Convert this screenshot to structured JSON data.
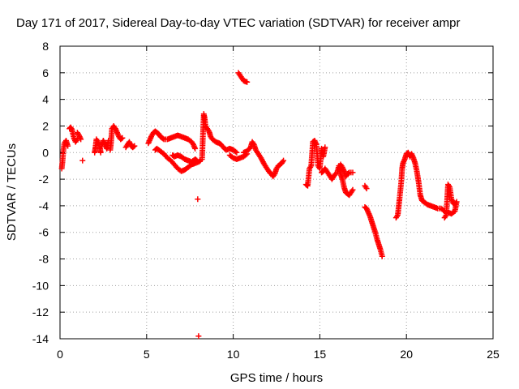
{
  "chart_data": {
    "type": "scatter",
    "title": "Day 171 of 2017, Sidereal Day-to-day VTEC variation (SDTVAR) for receiver ampr",
    "xlabel": "GPS time / hours",
    "ylabel": "SDTVAR / TECUs",
    "xlim": [
      0,
      25
    ],
    "ylim": [
      -14,
      8
    ],
    "xticks": [
      0,
      5,
      10,
      15,
      20,
      25
    ],
    "xtick_labels": [
      "0",
      "5",
      "10",
      "15",
      "20",
      "25"
    ],
    "yticks": [
      -14,
      -12,
      -10,
      -8,
      -6,
      -4,
      -2,
      0,
      2,
      4,
      6,
      8
    ],
    "ytick_labels": [
      "-14",
      "-12",
      "-10",
      "-8",
      "-6",
      "-4",
      "-2",
      "0",
      "2",
      "4",
      "6",
      "8"
    ],
    "grid": true,
    "marker": "+",
    "color": "#ff0000",
    "series": [
      {
        "name": "SDTVAR",
        "segments": [
          [
            [
              0.1,
              -1.2
            ],
            [
              0.15,
              -0.6
            ],
            [
              0.2,
              0.2
            ],
            [
              0.25,
              0.7
            ],
            [
              0.35,
              0.9
            ],
            [
              0.45,
              0.5
            ]
          ],
          [
            [
              0.55,
              1.8
            ],
            [
              0.62,
              1.9
            ],
            [
              0.7,
              1.7
            ],
            [
              0.8,
              1.1
            ],
            [
              0.9,
              0.8
            ],
            [
              1.0,
              1.0
            ]
          ],
          [
            [
              1.0,
              1.5
            ],
            [
              1.1,
              1.3
            ],
            [
              1.2,
              1.0
            ]
          ],
          [
            [
              1.3,
              -0.6
            ]
          ],
          [
            [
              2.0,
              0.0
            ],
            [
              2.05,
              0.4
            ],
            [
              2.1,
              1.0
            ],
            [
              2.2,
              0.8
            ],
            [
              2.3,
              0.4
            ],
            [
              2.35,
              0.0
            ]
          ],
          [
            [
              2.4,
              0.5
            ],
            [
              2.5,
              0.9
            ],
            [
              2.6,
              0.6
            ],
            [
              2.7,
              0.3
            ],
            [
              2.8,
              0.9
            ]
          ],
          [
            [
              2.9,
              0.2
            ],
            [
              2.95,
              0.8
            ],
            [
              3.0,
              1.8
            ],
            [
              3.1,
              2.0
            ],
            [
              3.2,
              1.8
            ],
            [
              3.3,
              1.5
            ],
            [
              3.4,
              1.2
            ],
            [
              3.5,
              1.0
            ],
            [
              3.6,
              1.1
            ]
          ],
          [
            [
              3.8,
              0.4
            ],
            [
              3.9,
              0.6
            ],
            [
              4.0,
              0.8
            ],
            [
              4.1,
              0.5
            ],
            [
              4.2,
              0.4
            ],
            [
              4.3,
              0.5
            ]
          ],
          [
            [
              5.1,
              0.7
            ],
            [
              5.2,
              1.0
            ],
            [
              5.3,
              1.3
            ],
            [
              5.4,
              1.5
            ],
            [
              5.5,
              1.6
            ],
            [
              5.6,
              1.5
            ],
            [
              5.7,
              1.4
            ],
            [
              5.8,
              1.2
            ],
            [
              5.9,
              1.1
            ],
            [
              6.0,
              1.0
            ],
            [
              6.2,
              1.0
            ],
            [
              6.4,
              1.1
            ],
            [
              6.6,
              1.2
            ],
            [
              6.8,
              1.3
            ],
            [
              7.0,
              1.2
            ],
            [
              7.2,
              1.1
            ],
            [
              7.4,
              1.0
            ],
            [
              7.6,
              0.8
            ],
            [
              7.7,
              0.6
            ],
            [
              7.8,
              0.3
            ]
          ],
          [
            [
              5.5,
              0.2
            ],
            [
              5.6,
              0.3
            ],
            [
              5.8,
              0.1
            ],
            [
              6.0,
              -0.1
            ],
            [
              6.2,
              -0.4
            ],
            [
              6.4,
              -0.6
            ],
            [
              6.6,
              -0.9
            ],
            [
              6.8,
              -1.2
            ],
            [
              7.0,
              -1.4
            ],
            [
              7.2,
              -1.3
            ],
            [
              7.4,
              -1.1
            ],
            [
              7.6,
              -0.9
            ],
            [
              7.8,
              -0.8
            ],
            [
              8.0,
              -0.7
            ],
            [
              8.1,
              -0.6
            ]
          ],
          [
            [
              6.5,
              -0.2
            ],
            [
              6.6,
              -0.3
            ],
            [
              6.8,
              -0.2
            ],
            [
              7.0,
              -0.3
            ],
            [
              7.2,
              -0.5
            ],
            [
              7.4,
              -0.6
            ],
            [
              7.6,
              -0.7
            ],
            [
              7.8,
              -0.5
            ],
            [
              7.9,
              -0.6
            ]
          ],
          [
            [
              7.95,
              -3.5
            ]
          ],
          [
            [
              8.0,
              -13.8
            ]
          ],
          [
            [
              8.2,
              -0.5
            ],
            [
              8.3,
              2.9
            ],
            [
              8.35,
              2.6
            ],
            [
              8.4,
              2.0
            ],
            [
              8.5,
              1.8
            ],
            [
              8.6,
              1.6
            ],
            [
              8.7,
              1.2
            ],
            [
              8.8,
              1.0
            ],
            [
              9.0,
              0.8
            ],
            [
              9.2,
              0.7
            ],
            [
              9.3,
              0.6
            ],
            [
              9.5,
              0.3
            ],
            [
              9.6,
              0.2
            ],
            [
              9.8,
              0.3
            ],
            [
              10.0,
              0.2
            ],
            [
              10.2,
              0.0
            ]
          ],
          [
            [
              9.8,
              -0.2
            ],
            [
              10.0,
              -0.4
            ],
            [
              10.2,
              -0.5
            ],
            [
              10.4,
              -0.4
            ],
            [
              10.6,
              -0.3
            ],
            [
              10.8,
              -0.1
            ]
          ],
          [
            [
              10.3,
              6.0
            ],
            [
              10.4,
              5.8
            ],
            [
              10.5,
              5.6
            ],
            [
              10.6,
              5.4
            ],
            [
              10.8,
              5.3
            ]
          ],
          [
            [
              10.6,
              0.0
            ],
            [
              10.8,
              0.1
            ],
            [
              11.0,
              0.4
            ],
            [
              11.1,
              0.8
            ],
            [
              11.2,
              0.6
            ],
            [
              11.3,
              0.2
            ],
            [
              11.5,
              -0.2
            ],
            [
              11.6,
              -0.4
            ],
            [
              11.8,
              -0.9
            ],
            [
              11.9,
              -1.1
            ],
            [
              12.0,
              -1.3
            ],
            [
              12.1,
              -1.5
            ],
            [
              12.2,
              -1.6
            ],
            [
              12.3,
              -1.8
            ],
            [
              12.4,
              -1.6
            ],
            [
              12.5,
              -1.2
            ],
            [
              12.6,
              -1.0
            ],
            [
              12.7,
              -0.9
            ],
            [
              12.8,
              -0.8
            ],
            [
              12.9,
              -0.6
            ]
          ],
          [
            [
              14.2,
              -2.4
            ],
            [
              14.3,
              -2.5
            ],
            [
              14.4,
              -1.2
            ],
            [
              14.5,
              -1.0
            ],
            [
              14.6,
              0.8
            ],
            [
              14.7,
              0.9
            ],
            [
              14.8,
              0.6
            ],
            [
              14.9,
              -1.0
            ],
            [
              15.0,
              -1.2
            ],
            [
              15.1,
              0.3
            ],
            [
              15.2,
              -0.3
            ],
            [
              15.3,
              0.4
            ]
          ],
          [
            [
              15.1,
              -1.5
            ],
            [
              15.2,
              -1.4
            ],
            [
              15.3,
              -1.2
            ],
            [
              15.7,
              -2.0
            ],
            [
              15.8,
              -1.8
            ],
            [
              15.9,
              -1.6
            ]
          ],
          [
            [
              16.0,
              -1.5
            ],
            [
              16.1,
              -1.0
            ],
            [
              16.2,
              -1.6
            ],
            [
              16.3,
              -2.0
            ],
            [
              16.4,
              -2.6
            ],
            [
              16.5,
              -3.0
            ],
            [
              16.6,
              -3.1
            ],
            [
              16.7,
              -3.2
            ],
            [
              16.8,
              -3.0
            ],
            [
              16.9,
              -2.8
            ]
          ],
          [
            [
              16.1,
              -1.3
            ],
            [
              16.2,
              -0.9
            ],
            [
              16.3,
              -1.1
            ],
            [
              16.4,
              -1.4
            ],
            [
              16.5,
              -1.8
            ],
            [
              16.6,
              -1.6
            ],
            [
              16.7,
              -1.5
            ],
            [
              16.8,
              -1.5
            ],
            [
              16.9,
              -1.5
            ]
          ],
          [
            [
              17.6,
              -2.5
            ],
            [
              17.7,
              -2.7
            ]
          ],
          [
            [
              17.6,
              -4.1
            ],
            [
              17.7,
              -4.2
            ],
            [
              17.8,
              -4.5
            ],
            [
              17.9,
              -4.8
            ],
            [
              18.0,
              -5.2
            ],
            [
              18.1,
              -5.6
            ],
            [
              18.2,
              -6.0
            ],
            [
              18.3,
              -6.5
            ],
            [
              18.4,
              -6.9
            ],
            [
              18.5,
              -7.3
            ],
            [
              18.6,
              -7.8
            ]
          ],
          [
            [
              19.4,
              -4.9
            ],
            [
              19.5,
              -4.7
            ],
            [
              19.6,
              -3.5
            ],
            [
              19.7,
              -2.2
            ],
            [
              19.75,
              -1.2
            ],
            [
              19.8,
              -0.8
            ],
            [
              19.9,
              -0.5
            ],
            [
              20.0,
              -0.1
            ],
            [
              20.1,
              0.0
            ],
            [
              20.2,
              -0.3
            ],
            [
              20.3,
              -0.1
            ],
            [
              20.4,
              -0.4
            ],
            [
              20.5,
              -0.8
            ],
            [
              20.6,
              -1.4
            ],
            [
              20.7,
              -2.2
            ],
            [
              20.8,
              -3.2
            ],
            [
              20.9,
              -3.6
            ],
            [
              21.0,
              -3.7
            ],
            [
              21.2,
              -3.9
            ],
            [
              21.4,
              -4.0
            ],
            [
              21.6,
              -4.1
            ],
            [
              21.8,
              -4.2
            ],
            [
              22.0,
              -4.2
            ],
            [
              22.2,
              -4.4
            ]
          ],
          [
            [
              22.2,
              -4.9
            ],
            [
              22.3,
              -4.7
            ],
            [
              22.4,
              -2.4
            ],
            [
              22.5,
              -2.6
            ],
            [
              22.6,
              -3.5
            ],
            [
              22.7,
              -3.8
            ],
            [
              22.8,
              -3.9
            ],
            [
              22.9,
              -3.7
            ],
            [
              22.8,
              -4.4
            ],
            [
              22.6,
              -4.6
            ],
            [
              22.4,
              -4.5
            ]
          ]
        ]
      }
    ]
  }
}
